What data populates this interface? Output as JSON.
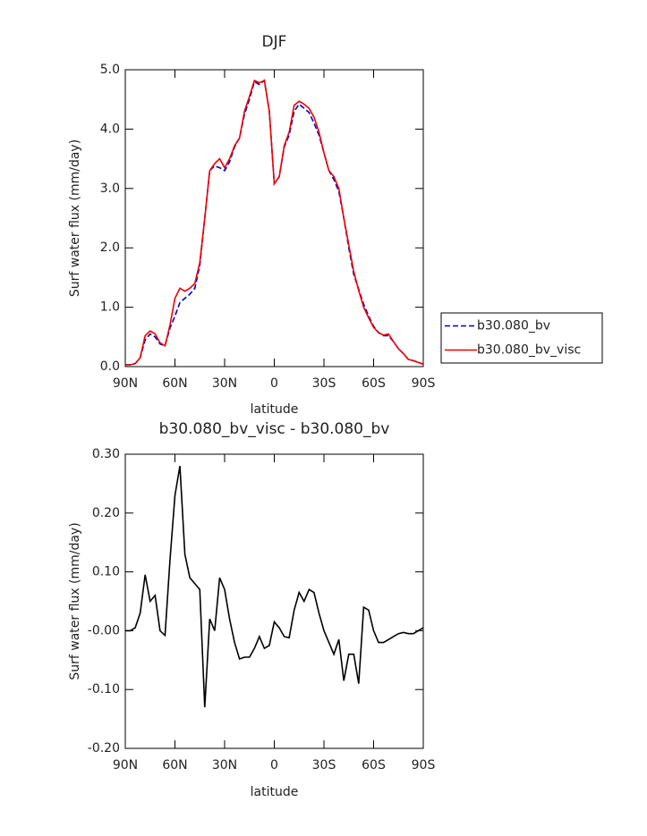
{
  "chart_data": [
    {
      "type": "line",
      "title": "DJF",
      "xlabel": "latitude",
      "ylabel": "Surf water flux (mm/day)",
      "x": [
        90,
        87,
        84,
        81,
        78,
        75,
        72,
        69,
        66,
        63,
        60,
        57,
        54,
        51,
        48,
        45,
        42,
        39,
        36,
        33,
        30,
        27,
        24,
        21,
        18,
        15,
        12,
        9,
        6,
        3,
        0,
        -3,
        -6,
        -9,
        -12,
        -15,
        -18,
        -21,
        -24,
        -27,
        -30,
        -33,
        -36,
        -39,
        -42,
        -45,
        -48,
        -51,
        -54,
        -57,
        -60,
        -63,
        -66,
        -69,
        -72,
        -75,
        -78,
        -81,
        -84,
        -87,
        -90
      ],
      "series": [
        {
          "name": "b30.080_bv",
          "color": "#0000cc",
          "line_style": "dashed",
          "values": [
            0.03,
            0.03,
            0.05,
            0.15,
            0.45,
            0.55,
            0.5,
            0.38,
            0.35,
            0.65,
            0.85,
            1.08,
            1.15,
            1.22,
            1.32,
            1.7,
            2.5,
            3.3,
            3.38,
            3.35,
            3.3,
            3.45,
            3.7,
            3.85,
            4.25,
            4.5,
            4.8,
            4.75,
            4.82,
            4.3,
            3.08,
            3.2,
            3.7,
            3.9,
            4.3,
            4.42,
            4.35,
            4.28,
            4.1,
            3.9,
            3.6,
            3.3,
            3.15,
            2.95,
            2.5,
            2.0,
            1.55,
            1.3,
            1.05,
            0.85,
            0.68,
            0.57,
            0.52,
            0.52,
            0.42,
            0.3,
            0.22,
            0.12,
            0.1,
            0.07,
            0.04
          ]
        },
        {
          "name": "b30.080_bv_visc",
          "color": "#ee0000",
          "line_style": "solid",
          "values": [
            0.03,
            0.03,
            0.05,
            0.15,
            0.52,
            0.6,
            0.55,
            0.4,
            0.35,
            0.7,
            1.15,
            1.32,
            1.27,
            1.32,
            1.4,
            1.75,
            2.5,
            3.3,
            3.42,
            3.5,
            3.35,
            3.5,
            3.72,
            3.85,
            4.3,
            4.55,
            4.82,
            4.78,
            4.82,
            4.3,
            3.08,
            3.2,
            3.72,
            3.95,
            4.4,
            4.47,
            4.42,
            4.35,
            4.2,
            3.95,
            3.6,
            3.3,
            3.2,
            3.0,
            2.5,
            2.05,
            1.6,
            1.28,
            1.0,
            0.82,
            0.66,
            0.57,
            0.53,
            0.55,
            0.42,
            0.3,
            0.22,
            0.12,
            0.1,
            0.07,
            0.04
          ]
        }
      ],
      "xlim": [
        90,
        -90
      ],
      "xticks": [
        {
          "value": 90,
          "label": "90N"
        },
        {
          "value": 60,
          "label": "60N"
        },
        {
          "value": 30,
          "label": "30N"
        },
        0,
        {
          "value": -30,
          "label": "30S"
        },
        {
          "value": -60,
          "label": "60S"
        },
        {
          "value": -90,
          "label": "90S"
        }
      ],
      "ylim": [
        0,
        5
      ],
      "yticks": [
        {
          "value": 0,
          "label": "0.0"
        },
        {
          "value": 1,
          "label": "1.0"
        },
        {
          "value": 2,
          "label": "2.0"
        },
        {
          "value": 3,
          "label": "3.0"
        },
        {
          "value": 4,
          "label": "4.0"
        },
        {
          "value": 5,
          "label": "5.0"
        }
      ],
      "legend": "right"
    },
    {
      "type": "line",
      "title": "b30.080_bv_visc - b30.080_bv",
      "xlabel": "latitude",
      "ylabel": "Surf water flux (mm/day)",
      "x": [
        90,
        87,
        84,
        81,
        78,
        75,
        72,
        69,
        66,
        63,
        60,
        57,
        54,
        51,
        48,
        45,
        42,
        39,
        36,
        33,
        30,
        27,
        24,
        21,
        18,
        15,
        12,
        9,
        6,
        3,
        0,
        -3,
        -6,
        -9,
        -12,
        -15,
        -18,
        -21,
        -24,
        -27,
        -30,
        -33,
        -36,
        -39,
        -42,
        -45,
        -48,
        -51,
        -54,
        -57,
        -60,
        -63,
        -66,
        -69,
        -72,
        -75,
        -78,
        -81,
        -84,
        -87,
        -90
      ],
      "color": "#000000",
      "values": [
        0.0,
        0.0,
        0.005,
        0.03,
        0.095,
        0.05,
        0.06,
        0.0,
        -0.008,
        0.12,
        0.23,
        0.28,
        0.13,
        0.09,
        0.08,
        0.07,
        -0.13,
        0.02,
        0.0,
        0.09,
        0.07,
        0.02,
        -0.02,
        -0.048,
        -0.045,
        -0.045,
        -0.03,
        -0.01,
        -0.03,
        -0.025,
        0.015,
        0.005,
        -0.01,
        -0.012,
        0.035,
        0.065,
        0.05,
        0.07,
        0.065,
        0.03,
        0.0,
        -0.02,
        -0.04,
        -0.015,
        -0.085,
        -0.04,
        -0.04,
        -0.09,
        0.04,
        0.035,
        0.0,
        -0.02,
        -0.02,
        -0.015,
        -0.01,
        -0.005,
        -0.003,
        -0.005,
        -0.005,
        0.0,
        0.005
      ],
      "xlim": [
        90,
        -90
      ],
      "xticks": [
        {
          "value": 90,
          "label": "90N"
        },
        {
          "value": 60,
          "label": "60N"
        },
        {
          "value": 30,
          "label": "30N"
        },
        0,
        {
          "value": -30,
          "label": "30S"
        },
        {
          "value": -60,
          "label": "60S"
        },
        {
          "value": -90,
          "label": "90S"
        }
      ],
      "ylim": [
        -0.2,
        0.3
      ],
      "yticks": [
        {
          "value": -0.2,
          "label": "-0.20"
        },
        {
          "value": -0.1,
          "label": "-0.10"
        },
        {
          "value": 0,
          "label": "-0.00"
        },
        {
          "value": 0.1,
          "label": "0.10"
        },
        {
          "value": 0.2,
          "label": "0.20"
        },
        {
          "value": 0.3,
          "label": "0.30"
        }
      ]
    }
  ]
}
